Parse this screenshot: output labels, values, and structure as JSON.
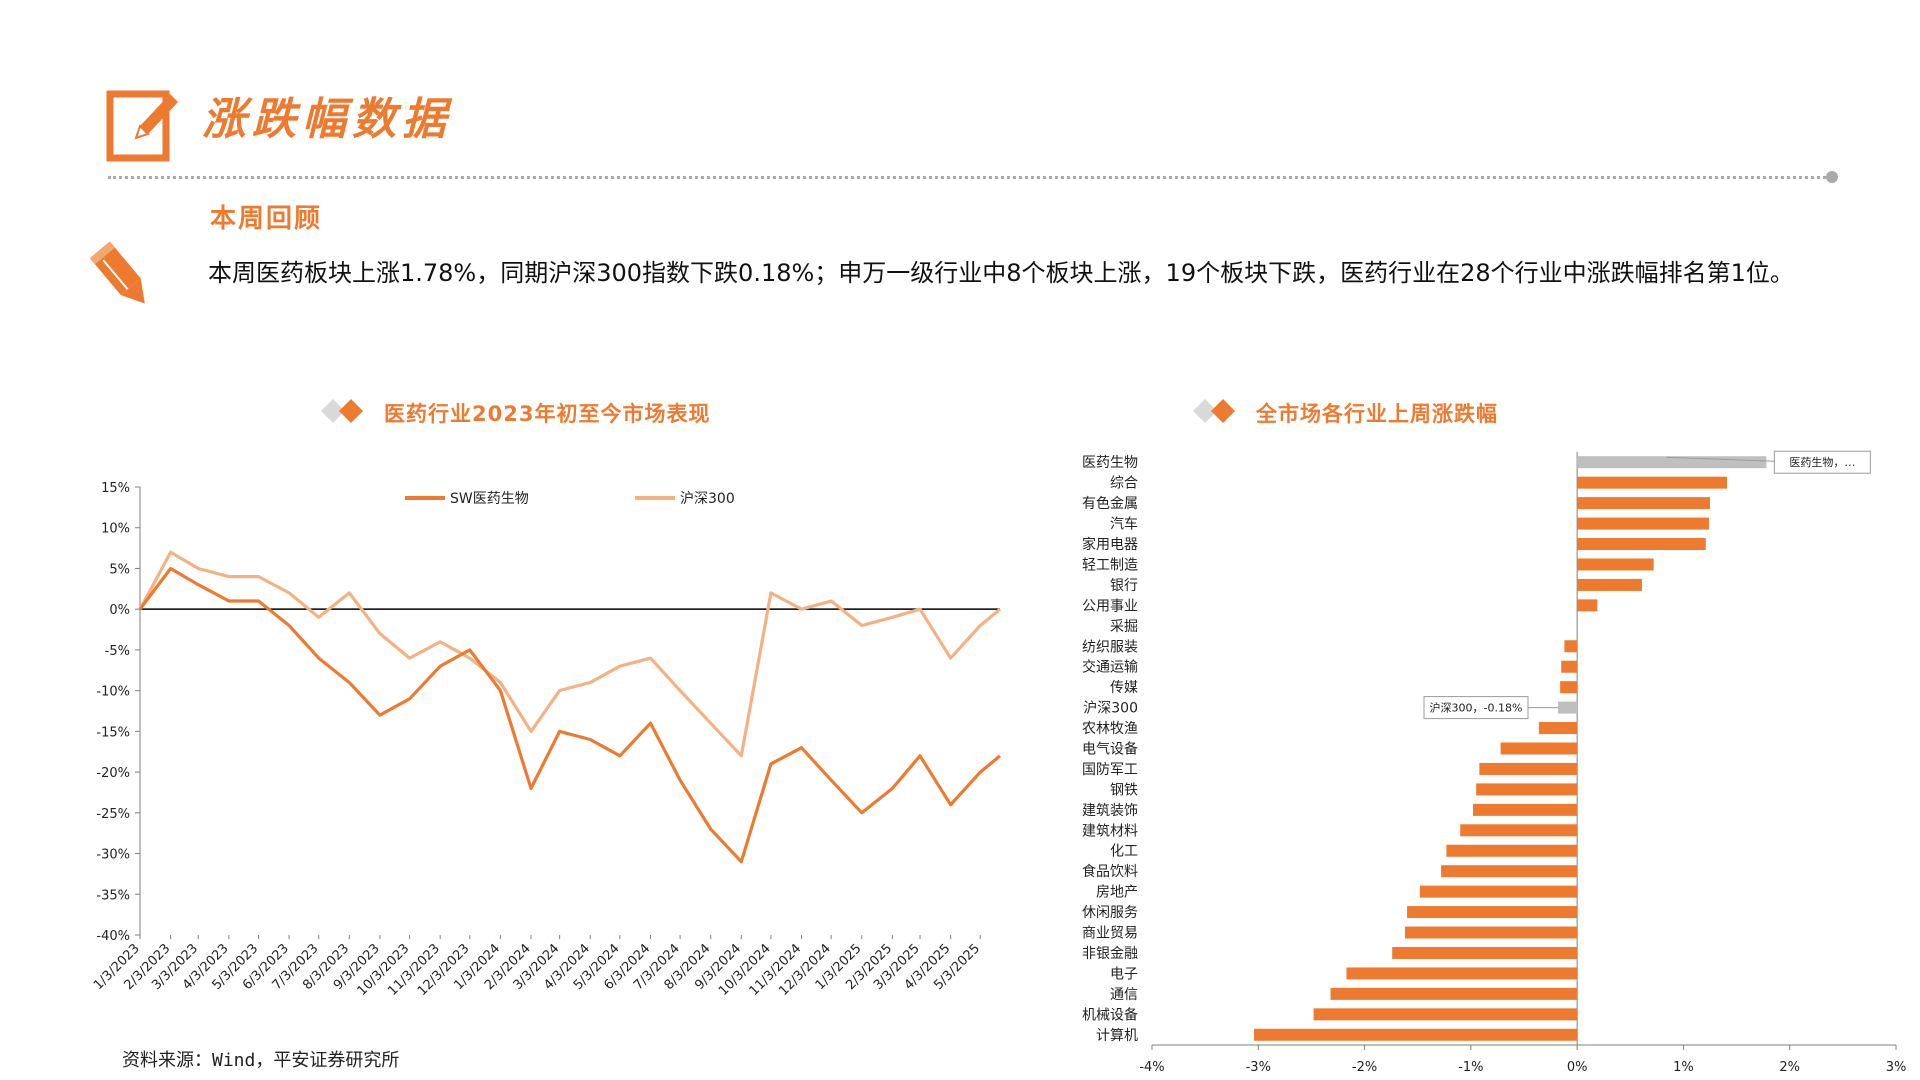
{
  "page": {
    "title": "涨跌幅数据",
    "review_title": "本周回顾",
    "review_body": "本周医药板块上涨1.78%，同期沪深300指数下跌0.18%；申万一级行业中8个板块上涨，19个板块下跌，医药行业在28个行业中涨跌幅排名第1位。",
    "source": "资料来源：Wind，平安证券研究所",
    "accent_color": "#ee7a30",
    "icons": [
      "edit-square-icon",
      "pencil-icon",
      "diamond-pair-icon"
    ]
  },
  "chart_data": [
    {
      "type": "line",
      "title": "医药行业2023年初至今市场表现",
      "y_unit": "%",
      "ylim": [
        -40,
        15
      ],
      "yticks": [
        15,
        10,
        5,
        0,
        -5,
        -10,
        -15,
        -20,
        -25,
        -30,
        -35,
        -40
      ],
      "ytick_labels": [
        "15%",
        "10%",
        "5%",
        "0%",
        "-5%",
        "-10%",
        "-15%",
        "-20%",
        "-25%",
        "-30%",
        "-35%",
        "-40%"
      ],
      "x_tick_labels": [
        "1/3/2023",
        "2/3/2023",
        "3/3/2023",
        "4/3/2023",
        "5/3/2023",
        "6/3/2023",
        "7/3/2023",
        "8/3/2023",
        "9/3/2023",
        "10/3/2023",
        "11/3/2023",
        "12/3/2023",
        "1/3/2024",
        "2/3/2024",
        "3/3/2024",
        "4/3/2024",
        "5/3/2024",
        "6/3/2024",
        "7/3/2024",
        "8/3/2024",
        "9/3/2024",
        "10/3/2024",
        "11/3/2024",
        "12/3/2024",
        "1/3/2025",
        "2/3/2025",
        "3/3/2025",
        "4/3/2025",
        "5/3/2025"
      ],
      "x": [
        "2023-01-03",
        "2023-02-03",
        "2023-03-03",
        "2023-04-03",
        "2023-05-03",
        "2023-06-03",
        "2023-07-03",
        "2023-08-03",
        "2023-09-03",
        "2023-10-03",
        "2023-11-03",
        "2023-12-03",
        "2024-01-03",
        "2024-02-03",
        "2024-03-03",
        "2024-04-03",
        "2024-05-03",
        "2024-06-03",
        "2024-07-03",
        "2024-08-03",
        "2024-09-03",
        "2024-10-03",
        "2024-11-03",
        "2024-12-03",
        "2025-01-03",
        "2025-02-03",
        "2025-03-03",
        "2025-04-03",
        "2025-05-03",
        "2025-05-23"
      ],
      "series": [
        {
          "name": "SW医药生物",
          "color": "#ee7a30",
          "values": [
            0,
            5,
            3,
            1,
            1,
            -2,
            -6,
            -9,
            -13,
            -11,
            -7,
            -5,
            -10,
            -22,
            -15,
            -16,
            -18,
            -14,
            -21,
            -27,
            -31,
            -19,
            -17,
            -21,
            -25,
            -22,
            -18,
            -24,
            -20,
            -18
          ]
        },
        {
          "name": "沪深300",
          "color": "#f4b183",
          "values": [
            0,
            7,
            5,
            4,
            4,
            2,
            -1,
            2,
            -3,
            -6,
            -4,
            -6,
            -9,
            -15,
            -10,
            -9,
            -7,
            -6,
            -10,
            -14,
            -18,
            2,
            0,
            1,
            -2,
            -1,
            0,
            -6,
            -2,
            0
          ]
        }
      ],
      "legend_position": "top",
      "grid": false
    },
    {
      "type": "bar",
      "orientation": "horizontal",
      "title": "全市场各行业上周涨跌幅",
      "xlim": [
        -4,
        3
      ],
      "xticks": [
        -4,
        -3,
        -2,
        -1,
        0,
        1,
        2,
        3
      ],
      "xtick_labels": [
        "-4%",
        "-3%",
        "-2%",
        "-1%",
        "0%",
        "1%",
        "2%",
        "3%"
      ],
      "categories": [
        "医药生物",
        "综合",
        "有色金属",
        "汽车",
        "家用电器",
        "轻工制造",
        "银行",
        "公用事业",
        "采掘",
        "纺织服装",
        "交通运输",
        "传媒",
        "沪深300",
        "农林牧渔",
        "电气设备",
        "国防军工",
        "钢铁",
        "建筑装饰",
        "建筑材料",
        "化工",
        "食品饮料",
        "房地产",
        "休闲服务",
        "商业贸易",
        "非银金融",
        "电子",
        "通信",
        "机械设备",
        "计算机"
      ],
      "values": [
        1.78,
        1.41,
        1.25,
        1.24,
        1.21,
        0.72,
        0.61,
        0.19,
        0.0,
        -0.12,
        -0.15,
        -0.16,
        -0.18,
        -0.36,
        -0.72,
        -0.92,
        -0.95,
        -0.98,
        -1.1,
        -1.23,
        -1.28,
        -1.48,
        -1.6,
        -1.62,
        -1.74,
        -2.17,
        -2.32,
        -2.48,
        -3.04
      ],
      "bar_color": "#ee7a30",
      "highlight_color": "#bfbfbf",
      "highlighted": [
        "医药生物",
        "沪深300"
      ],
      "annotations": [
        {
          "category": "医药生物",
          "text": "医药生物，…"
        },
        {
          "category": "沪深300",
          "text": "沪深300，-0.18%"
        }
      ]
    }
  ]
}
